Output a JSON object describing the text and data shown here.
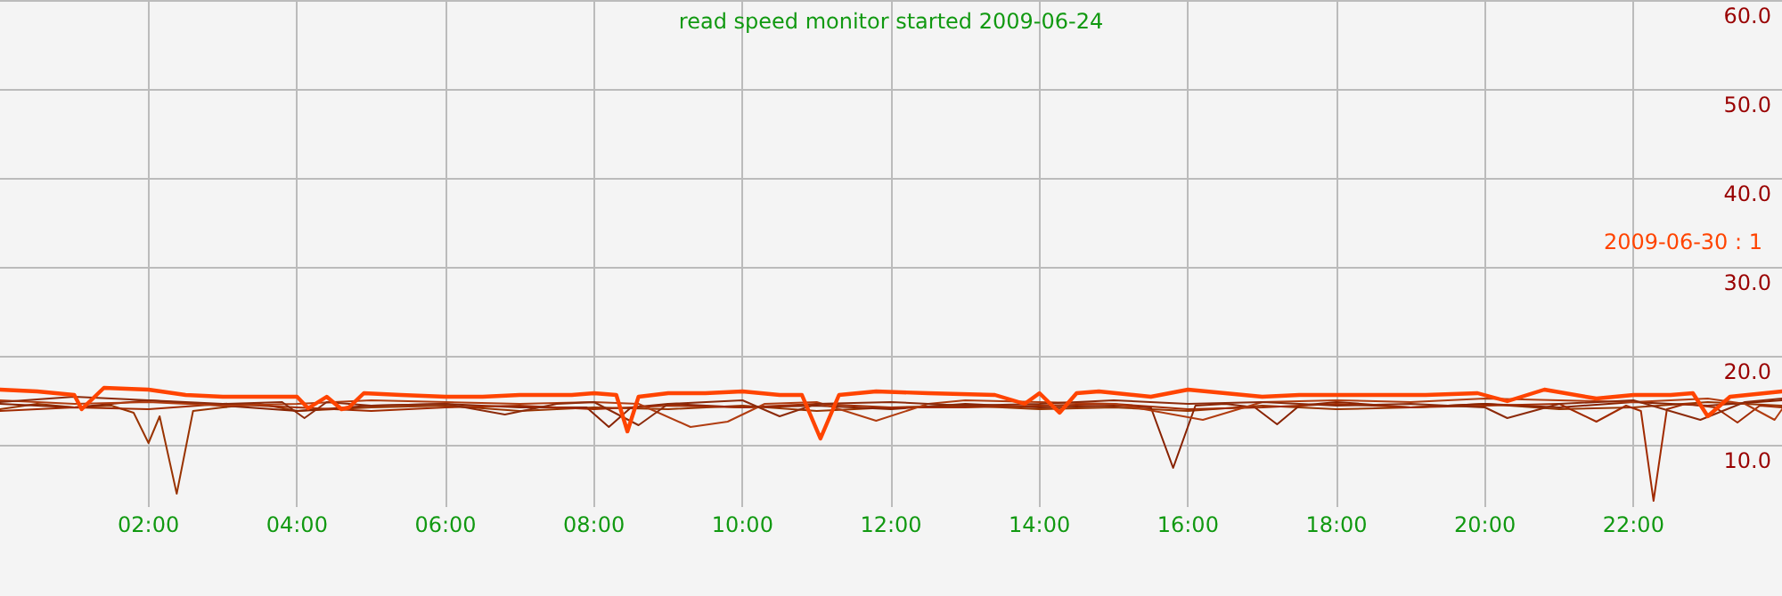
{
  "chart_data": {
    "type": "line",
    "title": "read speed monitor started 2009-06-24",
    "xlim": [
      0,
      24
    ],
    "xticks": [
      {
        "value": 2,
        "label": "02:00"
      },
      {
        "value": 4,
        "label": "04:00"
      },
      {
        "value": 6,
        "label": "06:00"
      },
      {
        "value": 8,
        "label": "08:00"
      },
      {
        "value": 10,
        "label": "10:00"
      },
      {
        "value": 12,
        "label": "12:00"
      },
      {
        "value": 14,
        "label": "14:00"
      },
      {
        "value": 16,
        "label": "16:00"
      },
      {
        "value": 18,
        "label": "18:00"
      },
      {
        "value": 20,
        "label": "20:00"
      },
      {
        "value": 22,
        "label": "22:00"
      }
    ],
    "ylim": [
      3,
      60
    ],
    "yticks": [
      {
        "value": 10,
        "label": "10.0"
      },
      {
        "value": 20,
        "label": "20.0"
      },
      {
        "value": 30,
        "label": "30.0"
      },
      {
        "value": 40,
        "label": "40.0"
      },
      {
        "value": 50,
        "label": "50.0"
      },
      {
        "value": 60,
        "label": "60.0"
      }
    ],
    "grid": true,
    "legend": "right",
    "marker": "none",
    "line_style": "solid",
    "series": [
      {
        "color": "#993300",
        "x": [
          0,
          0.5,
          1,
          1.5,
          1.8,
          2.0,
          2.15,
          2.38,
          2.6,
          3,
          3.5,
          4,
          5,
          6,
          7,
          8,
          9,
          10,
          11,
          12,
          13,
          14,
          15,
          16,
          17,
          18,
          19,
          20,
          21,
          22,
          23,
          24
        ],
        "values": [
          14,
          14.6,
          14.2,
          14.4,
          13.6,
          10.2,
          13.2,
          4.5,
          13.8,
          14.2,
          14.6,
          13.8,
          14.2,
          14.4,
          13.8,
          14.2,
          14,
          14.4,
          13.8,
          14.2,
          14.4,
          14,
          14.2,
          13.8,
          14.4,
          14,
          14.2,
          14.6,
          14,
          14.2,
          14.8,
          14.4
        ]
      },
      {
        "color": "#882200",
        "x": [
          0,
          1,
          2,
          3,
          4,
          5,
          6,
          7,
          7.9,
          8.2,
          8.5,
          9,
          10,
          11,
          12,
          13,
          14,
          15,
          15.5,
          15.8,
          16.1,
          16.5,
          16.9,
          17.2,
          17.5,
          18,
          19,
          20,
          21,
          22,
          23,
          24
        ],
        "values": [
          14.6,
          14.2,
          15,
          14.4,
          13.8,
          14.4,
          14.6,
          14.2,
          14.2,
          12,
          14.2,
          14.6,
          14.2,
          14.4,
          14,
          14.6,
          14.2,
          14.4,
          14.2,
          7.4,
          14.4,
          14.6,
          14.2,
          12.3,
          14.4,
          14.8,
          14.2,
          14.6,
          14.2,
          14.8,
          14.4,
          15
        ]
      },
      {
        "color": "#a02a00",
        "x": [
          0,
          1,
          2,
          3,
          4,
          5,
          6,
          7,
          8,
          9,
          10,
          11,
          12,
          13,
          14,
          15,
          16,
          17,
          18,
          19,
          20,
          21,
          21.5,
          21.9,
          22.1,
          22.27,
          22.45,
          22.7,
          23.1,
          23.4,
          23.7,
          24
        ],
        "values": [
          13.8,
          14.2,
          14,
          14.6,
          14.2,
          13.8,
          14.2,
          14.4,
          14,
          14.4,
          14.2,
          14.6,
          14.2,
          14.2,
          14.4,
          14.6,
          14,
          14.2,
          14.6,
          14.2,
          14.4,
          14.6,
          12.6,
          14.4,
          13.8,
          3.7,
          14,
          14.6,
          14.2,
          12.5,
          14.4,
          14.2
        ]
      },
      {
        "color": "#b03c10",
        "x": [
          0,
          1,
          2,
          3,
          4,
          5,
          6,
          7,
          8,
          8.6,
          9.3,
          9.8,
          10.3,
          11,
          11.8,
          12.5,
          13,
          14,
          15,
          16.2,
          17,
          18,
          19,
          20,
          21,
          22,
          23,
          23.5,
          23.9,
          24
        ],
        "values": [
          15,
          14.6,
          14.8,
          14.4,
          14.6,
          15,
          14.8,
          14.6,
          14.8,
          14.6,
          12,
          12.6,
          14.6,
          14.8,
          12.7,
          14.6,
          15,
          14.8,
          14.6,
          12.8,
          14.8,
          15,
          14.8,
          15.2,
          15,
          14.8,
          15.2,
          14.6,
          12.8,
          14
        ]
      },
      {
        "color": "#8c2a0a",
        "x": [
          0,
          1,
          2,
          3,
          3.8,
          4.1,
          4.4,
          5,
          6,
          6.8,
          7.5,
          8,
          8.6,
          9,
          10,
          10.5,
          11,
          12,
          13,
          14,
          15,
          16,
          17,
          18,
          19,
          20,
          20.3,
          21,
          22,
          22.9,
          23.5,
          24
        ],
        "values": [
          14.8,
          15.4,
          15,
          14.6,
          14.8,
          13,
          14.8,
          14.4,
          14.6,
          13.4,
          14.6,
          14.8,
          12.2,
          14.6,
          15,
          13.2,
          14.6,
          14.8,
          14.4,
          14.6,
          15,
          14.6,
          14.8,
          14.4,
          14.6,
          14.2,
          13,
          14.6,
          15,
          12.8,
          14.8,
          15.2
        ]
      },
      {
        "name": "2009-06-30 : 1",
        "color": "#ff4400",
        "x": [
          0,
          0.5,
          1.0,
          1.1,
          1.4,
          2,
          2.5,
          3,
          3.5,
          4,
          4.15,
          4.4,
          4.6,
          4.7,
          4.9,
          5.4,
          6,
          6.5,
          7,
          7.7,
          8,
          8.3,
          8.45,
          8.6,
          9,
          9.5,
          10,
          10.5,
          10.8,
          11.05,
          11.3,
          11.8,
          12.5,
          13.4,
          13.8,
          14,
          14.27,
          14.5,
          14.8,
          15.5,
          16,
          16.5,
          17,
          17.5,
          18,
          18.6,
          19.2,
          19.9,
          20.3,
          20.8,
          21.5,
          22,
          22.5,
          22.8,
          23.0,
          23.3,
          24
        ],
        "values": [
          16.2,
          16,
          15.6,
          14,
          16.4,
          16.2,
          15.6,
          15.4,
          15.4,
          15.4,
          14.1,
          15.4,
          14,
          14.2,
          15.8,
          15.6,
          15.4,
          15.4,
          15.6,
          15.6,
          15.8,
          15.6,
          11.5,
          15.4,
          15.8,
          15.8,
          16,
          15.6,
          15.6,
          10.7,
          15.6,
          16,
          15.8,
          15.6,
          14.6,
          15.8,
          13.6,
          15.8,
          16,
          15.4,
          16.2,
          15.8,
          15.4,
          15.6,
          15.6,
          15.6,
          15.6,
          15.8,
          14.9,
          16.2,
          15.2,
          15.6,
          15.6,
          15.8,
          13.2,
          15.4,
          16
        ]
      }
    ]
  }
}
